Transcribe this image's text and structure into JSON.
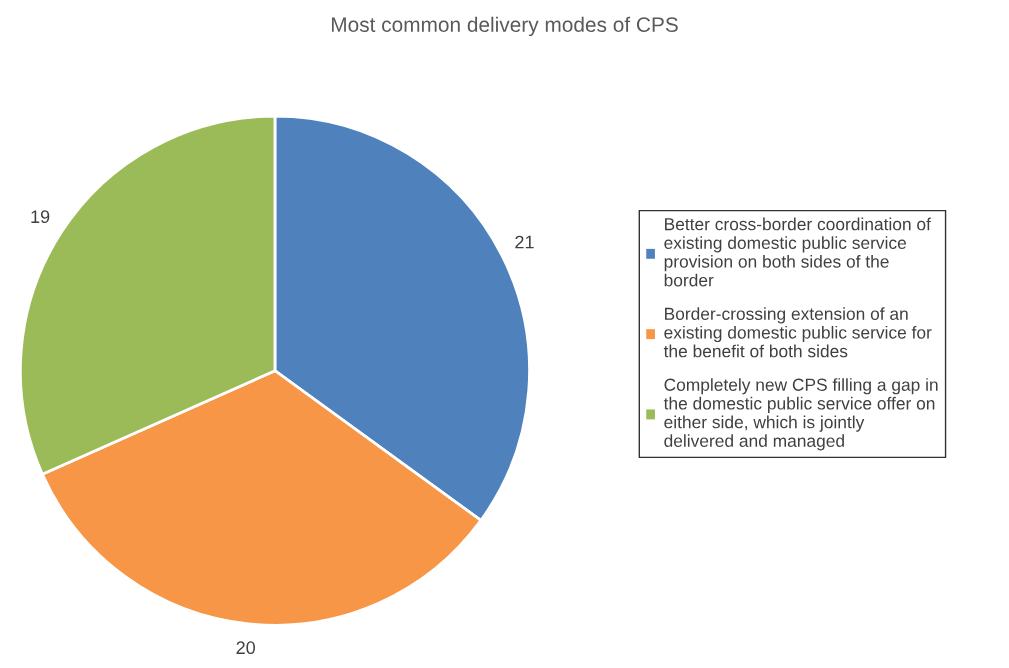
{
  "chart_data": {
    "type": "pie",
    "title": "Most common delivery modes of CPS",
    "categories": [
      "Better cross-border coordination of existing domestic public service provision on both sides of the border",
      "Border-crossing extension of an existing domestic public service for the benefit of both sides",
      "Completely new CPS filling a gap in the domestic public service offer on either side, which is jointly delivered and managed"
    ],
    "values": [
      21,
      20,
      19
    ],
    "colors": [
      "#4f81bd",
      "#f79646",
      "#9bbb59"
    ],
    "data_labels": true,
    "legend": "right"
  }
}
